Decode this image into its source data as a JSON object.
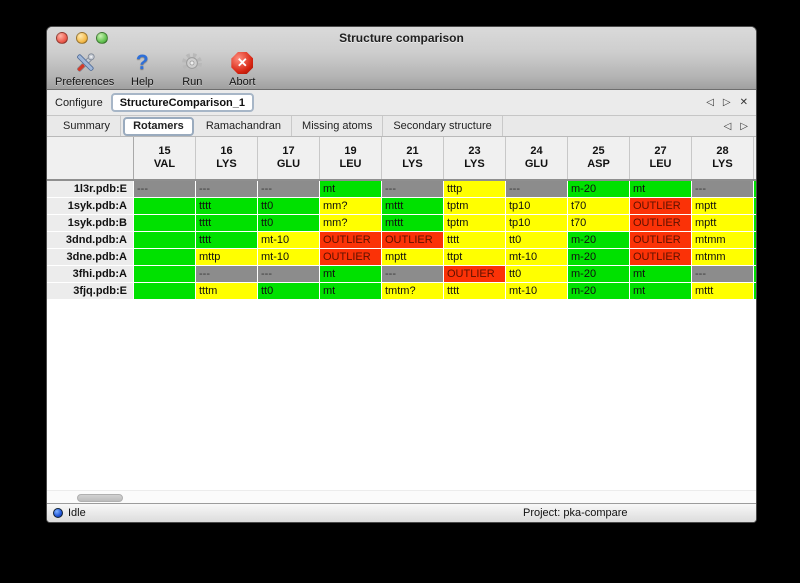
{
  "window": {
    "title": "Structure comparison"
  },
  "toolbar": {
    "items": [
      {
        "label": "Preferences",
        "icon": "tools-icon"
      },
      {
        "label": "Help",
        "icon": "help-icon"
      },
      {
        "label": "Run",
        "icon": "gear-icon"
      },
      {
        "label": "Abort",
        "icon": "abort-icon"
      }
    ]
  },
  "configure": {
    "label": "Configure",
    "value": "StructureComparison_1"
  },
  "nav": {
    "prev": "◁",
    "next": "▷",
    "close": "✕"
  },
  "tabs": [
    {
      "label": "Summary",
      "selected": false
    },
    {
      "label": "Rotamers",
      "selected": true
    },
    {
      "label": "Ramachandran",
      "selected": false
    },
    {
      "label": "Missing atoms",
      "selected": false
    },
    {
      "label": "Secondary structure",
      "selected": false
    }
  ],
  "table": {
    "columns": [
      {
        "num": "15",
        "res": "VAL"
      },
      {
        "num": "16",
        "res": "LYS"
      },
      {
        "num": "17",
        "res": "GLU"
      },
      {
        "num": "19",
        "res": "LEU"
      },
      {
        "num": "21",
        "res": "LYS"
      },
      {
        "num": "23",
        "res": "LYS"
      },
      {
        "num": "24",
        "res": "GLU"
      },
      {
        "num": "25",
        "res": "ASP"
      },
      {
        "num": "27",
        "res": "LEU"
      },
      {
        "num": "28",
        "res": "LYS"
      }
    ],
    "rows": [
      {
        "label": "1l3r.pdb:E",
        "cells": [
          {
            "text": "---",
            "status": "gray"
          },
          {
            "text": "---",
            "status": "gray"
          },
          {
            "text": "---",
            "status": "gray"
          },
          {
            "text": "mt",
            "status": "green"
          },
          {
            "text": "---",
            "status": "gray"
          },
          {
            "text": "tttp",
            "status": "yellow"
          },
          {
            "text": "---",
            "status": "gray"
          },
          {
            "text": "m-20",
            "status": "green"
          },
          {
            "text": "mt",
            "status": "green"
          },
          {
            "text": "---",
            "status": "gray"
          }
        ]
      },
      {
        "label": "1syk.pdb:A",
        "cells": [
          {
            "text": "",
            "status": "green"
          },
          {
            "text": "tttt",
            "status": "green"
          },
          {
            "text": "tt0",
            "status": "green"
          },
          {
            "text": "mm?",
            "status": "yellow"
          },
          {
            "text": "mttt",
            "status": "green"
          },
          {
            "text": "tptm",
            "status": "yellow"
          },
          {
            "text": "tp10",
            "status": "yellow"
          },
          {
            "text": "t70",
            "status": "yellow"
          },
          {
            "text": "OUTLIER",
            "status": "red"
          },
          {
            "text": "mptt",
            "status": "yellow"
          }
        ]
      },
      {
        "label": "1syk.pdb:B",
        "cells": [
          {
            "text": "",
            "status": "green"
          },
          {
            "text": "tttt",
            "status": "green"
          },
          {
            "text": "tt0",
            "status": "green"
          },
          {
            "text": "mm?",
            "status": "yellow"
          },
          {
            "text": "mttt",
            "status": "green"
          },
          {
            "text": "tptm",
            "status": "yellow"
          },
          {
            "text": "tp10",
            "status": "yellow"
          },
          {
            "text": "t70",
            "status": "yellow"
          },
          {
            "text": "OUTLIER",
            "status": "red"
          },
          {
            "text": "mptt",
            "status": "yellow"
          }
        ]
      },
      {
        "label": "3dnd.pdb:A",
        "cells": [
          {
            "text": "",
            "status": "green"
          },
          {
            "text": "tttt",
            "status": "green"
          },
          {
            "text": "mt-10",
            "status": "yellow"
          },
          {
            "text": "OUTLIER",
            "status": "red"
          },
          {
            "text": "OUTLIER",
            "status": "red"
          },
          {
            "text": "tttt",
            "status": "yellow"
          },
          {
            "text": "tt0",
            "status": "yellow"
          },
          {
            "text": "m-20",
            "status": "green"
          },
          {
            "text": "OUTLIER",
            "status": "red"
          },
          {
            "text": "mtmm",
            "status": "yellow"
          }
        ]
      },
      {
        "label": "3dne.pdb:A",
        "cells": [
          {
            "text": "",
            "status": "green"
          },
          {
            "text": "mttp",
            "status": "yellow"
          },
          {
            "text": "mt-10",
            "status": "yellow"
          },
          {
            "text": "OUTLIER",
            "status": "red"
          },
          {
            "text": "mptt",
            "status": "yellow"
          },
          {
            "text": "ttpt",
            "status": "yellow"
          },
          {
            "text": "mt-10",
            "status": "yellow"
          },
          {
            "text": "m-20",
            "status": "green"
          },
          {
            "text": "OUTLIER",
            "status": "red"
          },
          {
            "text": "mtmm",
            "status": "yellow"
          }
        ]
      },
      {
        "label": "3fhi.pdb:A",
        "cells": [
          {
            "text": "",
            "status": "green"
          },
          {
            "text": "---",
            "status": "gray"
          },
          {
            "text": "---",
            "status": "gray"
          },
          {
            "text": "mt",
            "status": "green"
          },
          {
            "text": "---",
            "status": "gray"
          },
          {
            "text": "OUTLIER",
            "status": "red"
          },
          {
            "text": "tt0",
            "status": "yellow"
          },
          {
            "text": "m-20",
            "status": "green"
          },
          {
            "text": "mt",
            "status": "green"
          },
          {
            "text": "---",
            "status": "gray"
          }
        ]
      },
      {
        "label": "3fjq.pdb:E",
        "cells": [
          {
            "text": "",
            "status": "green"
          },
          {
            "text": "tttm",
            "status": "yellow"
          },
          {
            "text": "tt0",
            "status": "green"
          },
          {
            "text": "mt",
            "status": "green"
          },
          {
            "text": "tmtm?",
            "status": "yellow"
          },
          {
            "text": "tttt",
            "status": "yellow"
          },
          {
            "text": "mt-10",
            "status": "yellow"
          },
          {
            "text": "m-20",
            "status": "green"
          },
          {
            "text": "mt",
            "status": "green"
          },
          {
            "text": "mttt",
            "status": "yellow"
          }
        ]
      }
    ],
    "partial_column_status": "green"
  },
  "colors": {
    "green": "#00e100",
    "yellow": "#ffff00",
    "red": "#fb3207",
    "gray": "#8c8c8c"
  },
  "status_bar": {
    "state": "Idle",
    "project": "Project: pka-compare"
  }
}
